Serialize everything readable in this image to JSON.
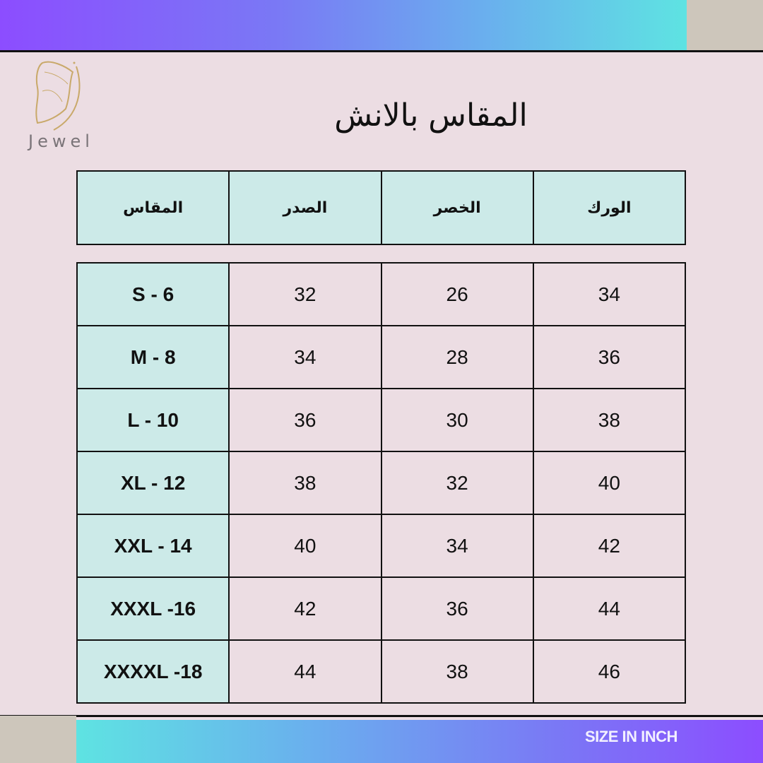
{
  "brand": {
    "logo_text": "Jewel",
    "accent_gradient": [
      "#8c4dff",
      "#5ee3e2"
    ],
    "cell_color": "#cceae8",
    "background": "#ecdde3"
  },
  "title": "المقاس بالانش",
  "headers": [
    "المقاس",
    "الصدر",
    "الخصر",
    "الورك"
  ],
  "rows": [
    {
      "size": "S - 6",
      "chest": "32",
      "waist": "26",
      "hips": "34"
    },
    {
      "size": "M - 8",
      "chest": "34",
      "waist": "28",
      "hips": "36"
    },
    {
      "size": "L - 10",
      "chest": "36",
      "waist": "30",
      "hips": "38"
    },
    {
      "size": "XL - 12",
      "chest": "38",
      "waist": "32",
      "hips": "40"
    },
    {
      "size": "XXL - 14",
      "chest": "40",
      "waist": "34",
      "hips": "42"
    },
    {
      "size": "XXXL -16",
      "chest": "42",
      "waist": "36",
      "hips": "44"
    },
    {
      "size": "XXXXL -18",
      "chest": "44",
      "waist": "38",
      "hips": "46"
    }
  ],
  "footer": "SIZE IN INCH"
}
